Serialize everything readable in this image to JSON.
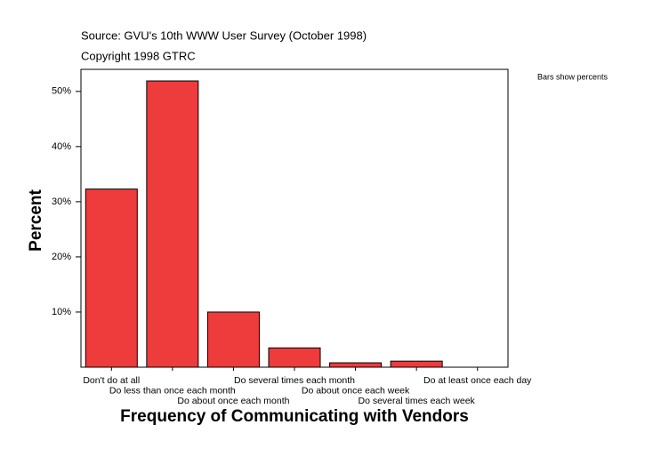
{
  "chart_data": {
    "type": "bar",
    "source": "Source: GVU's 10th WWW User Survey (October 1998)",
    "copyright": "Copyright 1998 GTRC",
    "note": "Bars show percents",
    "x_label": "Frequency of Communicating with Vendors",
    "y_label": "Percent",
    "categories": [
      "Don't do at all",
      "Do less than once each month",
      "Do about once each month",
      "Do several times each month",
      "Do about once each week",
      "Do several times each week",
      "Do at least once each day"
    ],
    "values": [
      32.3,
      51.9,
      10.0,
      3.5,
      0.8,
      1.1,
      0
    ],
    "color": "#ee3b3b",
    "ylim": [
      0,
      54
    ],
    "yticks": [
      {
        "value": 10,
        "label": "10%"
      },
      {
        "value": 20,
        "label": "20%"
      },
      {
        "value": 30,
        "label": "30%"
      },
      {
        "value": 40,
        "label": "40%"
      },
      {
        "value": 50,
        "label": "50%"
      }
    ]
  }
}
